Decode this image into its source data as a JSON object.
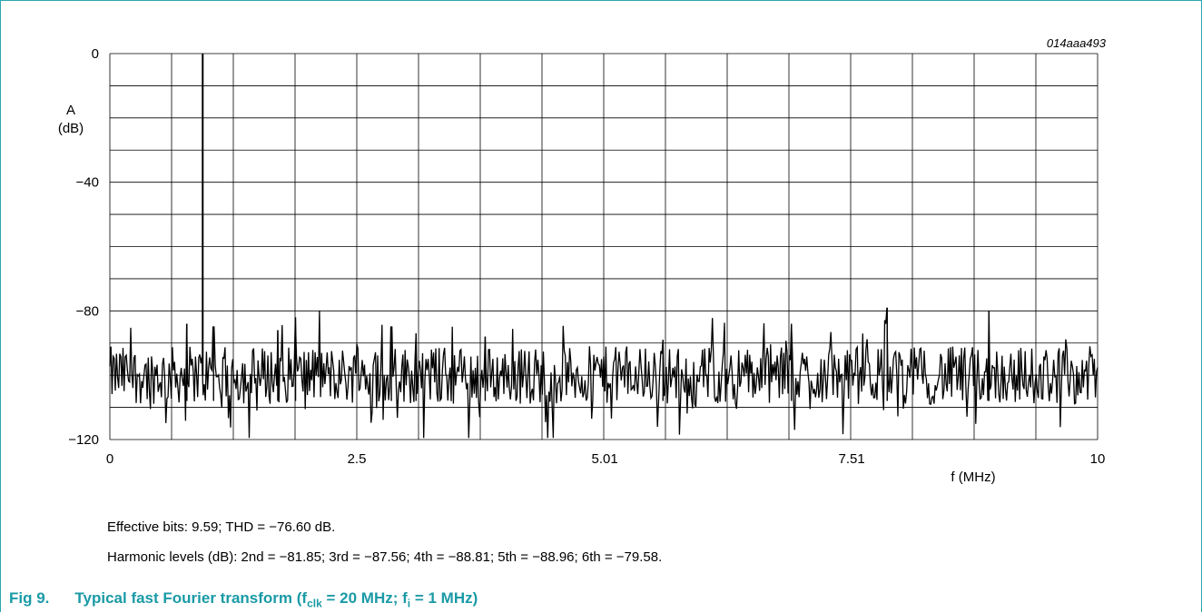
{
  "chart_data": {
    "type": "line",
    "figure_id": "014aaa493",
    "ylabel_line1": "A",
    "ylabel_line2": "(dB)",
    "xlabel": "f (MHz)",
    "xlim": [
      0,
      10
    ],
    "ylim": [
      -120,
      0
    ],
    "x_tick_labels": [
      "0",
      "2.5",
      "5.01",
      "7.51",
      "10"
    ],
    "x_tick_values": [
      0,
      2.5,
      5.01,
      7.51,
      10
    ],
    "y_tick_labels": [
      "0",
      "−40",
      "−80",
      "−120"
    ],
    "y_tick_values": [
      0,
      -40,
      -80,
      -120
    ],
    "grid": true,
    "x_grid_divisions": 16,
    "y_grid_divisions": 12,
    "fundamental": {
      "x": 0.94,
      "y": 0
    },
    "noise_floor_db": -100,
    "spurs": [
      {
        "x": 0.78,
        "y": -84
      },
      {
        "x": 1.05,
        "y": -85
      },
      {
        "x": 1.7,
        "y": -86
      },
      {
        "x": 1.88,
        "y": -82
      },
      {
        "x": 2.85,
        "y": -85
      },
      {
        "x": 3.1,
        "y": -87
      },
      {
        "x": 3.8,
        "y": -88
      },
      {
        "x": 5.6,
        "y": -89
      },
      {
        "x": 8.9,
        "y": -80
      },
      {
        "x": 7.87,
        "y": -79
      },
      {
        "x": 6.9,
        "y": -84
      }
    ]
  },
  "notes": {
    "effective_bits": "Effective bits: 9.59; THD = −76.60 dB.",
    "harmonics": "Harmonic levels (dB): 2nd = −81.85; 3rd = −87.56; 4th = −88.81; 5th = −88.96; 6th = −79.58."
  },
  "caption": {
    "fig_label": "Fig 9.",
    "title_prefix": "Typical fast Fourier transform (f",
    "sub1": "clk",
    "mid": " = 20 MHz; f",
    "sub2": "i",
    "suffix": " = 1 MHz)"
  },
  "colors": {
    "frame": "#2aa7b0",
    "caption": "#1a9aa6",
    "trace": "#000000",
    "grid": "#000000"
  }
}
